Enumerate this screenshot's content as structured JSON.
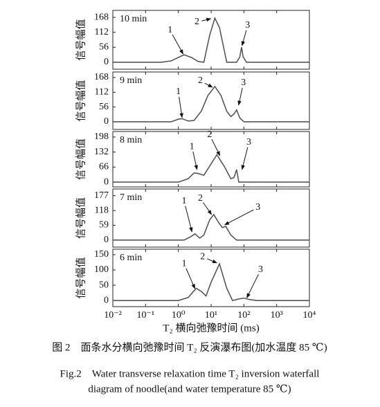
{
  "chart_data": [
    {
      "type": "line",
      "title": "10 min",
      "ylabel": "信号幅值",
      "log_x": true,
      "xlim": [
        0.01,
        10000
      ],
      "xticks": [
        0.01,
        0.1,
        1,
        10,
        100,
        1000,
        10000
      ],
      "ylim": [
        -26,
        194
      ],
      "yticks": [
        0,
        56,
        112,
        168
      ],
      "x": [
        0.01,
        0.3,
        0.6,
        1,
        1.5,
        2.5,
        4,
        6,
        9,
        13,
        18,
        30,
        60,
        75,
        85,
        95,
        120,
        10000
      ],
      "series": [
        {
          "color": "#555555",
          "values": [
            0,
            0,
            5,
            18,
            28,
            18,
            3,
            0,
            100,
            165,
            130,
            0,
            0,
            20,
            56,
            20,
            0,
            0
          ]
        }
      ],
      "annotations": [
        {
          "text": "1",
          "x": 1.4,
          "y": 31,
          "text_x": 0.56,
          "text_y": 119
        },
        {
          "text": "2",
          "x": 9.8,
          "y": 163,
          "text_x": 3.7,
          "text_y": 150
        },
        {
          "text": "3",
          "x": 88,
          "y": 62,
          "text_x": 130,
          "text_y": 137
        }
      ]
    },
    {
      "type": "line",
      "title": "9 min",
      "ylabel": "信号幅值",
      "log_x": true,
      "xlim": [
        0.01,
        10000
      ],
      "xticks": [
        0.01,
        0.1,
        1,
        10,
        100,
        1000,
        10000
      ],
      "ylim": [
        -29,
        189
      ],
      "yticks": [
        0,
        56,
        112,
        168
      ],
      "x": [
        0.01,
        0.6,
        1,
        1.3,
        2,
        3,
        5,
        8,
        13,
        20,
        30,
        40,
        50,
        60,
        75,
        100,
        10000
      ],
      "series": [
        {
          "color": "#555555",
          "values": [
            0,
            0,
            10,
            12,
            3,
            5,
            40,
            100,
            134,
            100,
            40,
            20,
            30,
            45,
            15,
            0,
            0
          ]
        }
      ],
      "annotations": [
        {
          "text": "1",
          "x": 1.3,
          "y": 16,
          "text_x": 1,
          "text_y": 113
        },
        {
          "text": "2",
          "x": 11,
          "y": 131,
          "text_x": 4.7,
          "text_y": 155
        },
        {
          "text": "3",
          "x": 69,
          "y": 63,
          "text_x": 97,
          "text_y": 147
        }
      ]
    },
    {
      "type": "line",
      "title": "8 min",
      "ylabel": "信号幅值",
      "log_x": true,
      "xlim": [
        0.01,
        10000
      ],
      "xticks": [
        0.01,
        0.1,
        1,
        10,
        100,
        1000,
        10000
      ],
      "ylim": [
        -21,
        222
      ],
      "yticks": [
        0,
        66,
        132,
        198
      ],
      "x": [
        0.01,
        1,
        2,
        3,
        4,
        6,
        9,
        15,
        25,
        40,
        50,
        60,
        70,
        10000
      ],
      "series": [
        {
          "color": "#555555",
          "values": [
            0,
            0,
            15,
            40,
            38,
            30,
            70,
            120,
            70,
            15,
            20,
            55,
            0,
            0
          ]
        }
      ],
      "annotations": [
        {
          "text": "1",
          "x": 3.7,
          "y": 55,
          "text_x": 2.6,
          "text_y": 155
        },
        {
          "text": "2",
          "x": 18.5,
          "y": 116,
          "text_x": 9,
          "text_y": 207
        },
        {
          "text": "3",
          "x": 88,
          "y": 55,
          "text_x": 142,
          "text_y": 174
        }
      ]
    },
    {
      "type": "line",
      "title": "7 min",
      "ylabel": "信号幅值",
      "log_x": true,
      "xlim": [
        0.01,
        10000
      ],
      "xticks": [
        0.01,
        0.1,
        1,
        10,
        100,
        1000,
        10000
      ],
      "ylim": [
        -28,
        204
      ],
      "yticks": [
        0,
        59,
        118,
        177
      ],
      "x": [
        0.01,
        1.5,
        2.5,
        3.2,
        4.5,
        6,
        9,
        12,
        18,
        22,
        28,
        40,
        60,
        10000
      ],
      "series": [
        {
          "color": "#555555",
          "values": [
            0,
            0,
            15,
            25,
            8,
            20,
            80,
            102,
            65,
            50,
            55,
            20,
            0,
            0
          ]
        }
      ],
      "annotations": [
        {
          "text": "1",
          "x": 2.6,
          "y": 33,
          "text_x": 1.5,
          "text_y": 155
        },
        {
          "text": "2",
          "x": 10.3,
          "y": 102,
          "text_x": 4.7,
          "text_y": 166
        },
        {
          "text": "3",
          "x": 26,
          "y": 61,
          "text_x": 270,
          "text_y": 130
        }
      ]
    },
    {
      "type": "line",
      "title": "6 min",
      "ylabel": "信号幅值",
      "log_x": true,
      "xlabel": "T₂ 横向弛豫时间 (ms)",
      "xlim": [
        0.01,
        10000
      ],
      "xticks": [
        {
          "value": 0.01,
          "label": "10⁻²"
        },
        {
          "value": 0.1,
          "label": "10⁻¹"
        },
        {
          "value": 1,
          "label": "10⁰"
        },
        {
          "value": 10,
          "label": "10¹"
        },
        {
          "value": 100,
          "label": "10²"
        },
        {
          "value": 1000,
          "label": "10³"
        },
        {
          "value": 10000,
          "label": "10⁴"
        }
      ],
      "ylim": [
        -20,
        168
      ],
      "yticks": [
        0,
        50,
        100,
        150
      ],
      "x": [
        0.01,
        1,
        2,
        3.5,
        5,
        7,
        10,
        18,
        30,
        45,
        70,
        100,
        150,
        250,
        10000
      ],
      "series": [
        {
          "color": "#555555",
          "values": [
            0,
            0,
            10,
            40,
            30,
            15,
            60,
            120,
            40,
            0,
            5,
            8,
            3,
            0,
            0
          ]
        }
      ],
      "annotations": [
        {
          "text": "1",
          "x": 3.2,
          "y": 39,
          "text_x": 1.5,
          "text_y": 120
        },
        {
          "text": "2",
          "x": 15,
          "y": 123,
          "text_x": 5.5,
          "text_y": 143
        },
        {
          "text": "3",
          "x": 123,
          "y": 9,
          "text_x": 325,
          "text_y": 100
        }
      ]
    }
  ],
  "caption": {
    "cn": "图 2　面条水分横向弛豫时间 T₂ 反演瀑布图(加水温度 85 ℃)",
    "en1": "Fig.2　Water transverse relaxation time T₂ inversion waterfall",
    "en2": "diagram of noodle(and water temperature 85 ℃)"
  }
}
